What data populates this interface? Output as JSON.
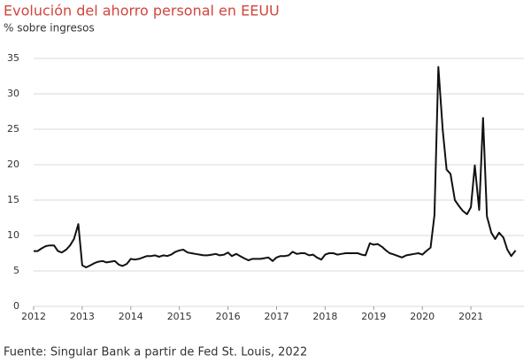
{
  "chart_data": {
    "type": "line",
    "title": "Evolución del ahorro personal en EEUU",
    "subtitle": "% sobre ingresos",
    "source": "Fuente: Singular Bank a partir de Fed St. Louis, 2022",
    "x": [
      2012,
      2012.08,
      2012.17,
      2012.25,
      2012.33,
      2012.42,
      2012.5,
      2012.58,
      2012.67,
      2012.75,
      2012.83,
      2012.92,
      2013,
      2013.08,
      2013.17,
      2013.25,
      2013.33,
      2013.42,
      2013.5,
      2013.58,
      2013.67,
      2013.75,
      2013.83,
      2013.92,
      2014,
      2014.08,
      2014.17,
      2014.25,
      2014.33,
      2014.42,
      2014.5,
      2014.58,
      2014.67,
      2014.75,
      2014.83,
      2014.92,
      2015,
      2015.08,
      2015.17,
      2015.25,
      2015.33,
      2015.42,
      2015.5,
      2015.58,
      2015.67,
      2015.75,
      2015.83,
      2015.92,
      2016,
      2016.08,
      2016.17,
      2016.25,
      2016.33,
      2016.42,
      2016.5,
      2016.58,
      2016.67,
      2016.75,
      2016.83,
      2016.92,
      2017,
      2017.08,
      2017.17,
      2017.25,
      2017.33,
      2017.42,
      2017.5,
      2017.58,
      2017.67,
      2017.75,
      2017.83,
      2017.92,
      2018,
      2018.08,
      2018.17,
      2018.25,
      2018.33,
      2018.42,
      2018.5,
      2018.58,
      2018.67,
      2018.75,
      2018.83,
      2018.92,
      2019,
      2019.08,
      2019.17,
      2019.25,
      2019.33,
      2019.42,
      2019.5,
      2019.58,
      2019.67,
      2019.75,
      2019.83,
      2019.92,
      2020,
      2020.08,
      2020.17,
      2020.25,
      2020.33,
      2020.42,
      2020.5,
      2020.58,
      2020.67,
      2020.75,
      2020.83,
      2020.92,
      2021,
      2021.08,
      2021.17,
      2021.25,
      2021.33,
      2021.42,
      2021.5,
      2021.58,
      2021.67,
      2021.75,
      2021.83,
      2021.92
    ],
    "series": [
      {
        "color": "#111111",
        "values": [
          7.8,
          7.8,
          8.2,
          8.5,
          8.6,
          8.6,
          7.8,
          7.6,
          8.0,
          8.6,
          9.5,
          11.6,
          5.8,
          5.5,
          5.8,
          6.1,
          6.3,
          6.4,
          6.2,
          6.3,
          6.4,
          5.9,
          5.7,
          6.0,
          6.7,
          6.6,
          6.7,
          6.9,
          7.1,
          7.1,
          7.2,
          7.0,
          7.2,
          7.1,
          7.3,
          7.7,
          7.9,
          8.0,
          7.6,
          7.5,
          7.4,
          7.3,
          7.2,
          7.2,
          7.3,
          7.4,
          7.2,
          7.3,
          7.6,
          7.1,
          7.4,
          7.1,
          6.8,
          6.5,
          6.7,
          6.7,
          6.7,
          6.8,
          6.9,
          6.4,
          6.9,
          7.1,
          7.1,
          7.2,
          7.7,
          7.4,
          7.5,
          7.5,
          7.2,
          7.3,
          6.9,
          6.6,
          7.3,
          7.5,
          7.5,
          7.3,
          7.4,
          7.5,
          7.5,
          7.5,
          7.5,
          7.3,
          7.2,
          8.9,
          8.7,
          8.8,
          8.4,
          7.9,
          7.5,
          7.3,
          7.1,
          6.9,
          7.2,
          7.3,
          7.4,
          7.5,
          7.3,
          7.8,
          8.3,
          12.9,
          33.8,
          24.9,
          19.3,
          18.7,
          15.0,
          14.2,
          13.5,
          13.0,
          14.0,
          19.9,
          13.6,
          26.6,
          12.7,
          10.4,
          9.5,
          10.4,
          9.7,
          8.0,
          7.1,
          7.9
        ]
      }
    ],
    "xlim": [
      2012,
      2022
    ],
    "xticks": [
      2012,
      2013,
      2014,
      2015,
      2016,
      2017,
      2018,
      2019,
      2020,
      2021
    ],
    "ylim": [
      0,
      35
    ],
    "yticks": [
      0,
      5,
      10,
      15,
      20,
      25,
      30,
      35
    ],
    "grid": true
  }
}
